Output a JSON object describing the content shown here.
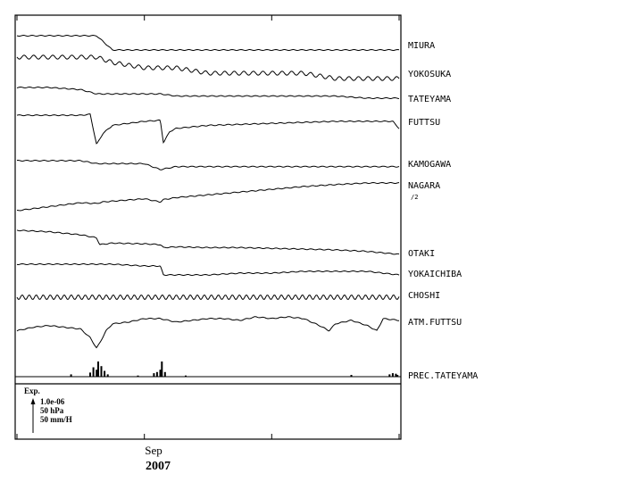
{
  "chart_data": {
    "type": "line",
    "x_axis": {
      "tick_month": "Sep",
      "tick_year": "2007",
      "tick_positions_days": [
        0,
        4,
        8,
        12
      ]
    },
    "scale_legend": {
      "title": "Exp.",
      "lines": [
        "1.0e-06",
        "50 hPa",
        "50 mm/H"
      ]
    },
    "series": [
      {
        "name": "MIURA",
        "note": "",
        "kind": "line",
        "x": [
          0,
          1,
          2,
          2.5,
          3,
          4,
          5,
          6,
          7,
          8,
          9,
          10,
          11,
          12
        ],
        "y": [
          52,
          52,
          52,
          52,
          50,
          50,
          50,
          50,
          50,
          50,
          50,
          50,
          50,
          50
        ]
      },
      {
        "name": "YOKOSUKA",
        "note": "",
        "kind": "line",
        "x": [
          0,
          1,
          2,
          2.5,
          3,
          4,
          5,
          6,
          7,
          8,
          9,
          10,
          11,
          12
        ],
        "y": [
          71,
          71,
          71,
          71,
          70,
          69,
          69,
          68,
          68,
          68,
          68,
          67,
          67,
          67
        ]
      },
      {
        "name": "TATEYAMA",
        "note": "",
        "kind": "line",
        "x": [
          0,
          1,
          2,
          2.5,
          3,
          4,
          4.5,
          5,
          6,
          7,
          8,
          9,
          10,
          11,
          12
        ],
        "y": [
          100,
          100,
          99,
          97,
          97,
          97,
          97,
          96,
          96,
          96,
          96,
          96,
          96,
          95,
          95
        ]
      },
      {
        "name": "FUTTSU",
        "note": "",
        "kind": "line",
        "x": [
          0,
          1,
          2,
          2.3,
          2.5,
          2.7,
          3,
          4,
          4.5,
          4.6,
          4.8,
          5,
          6,
          7,
          8,
          9,
          10,
          11,
          11.8,
          12
        ],
        "y": [
          130,
          130,
          130,
          131,
          101,
          112,
          120,
          124,
          125,
          103,
          114,
          117,
          120,
          121,
          122,
          123,
          124,
          124,
          124,
          117
        ]
      },
      {
        "name": "KAMOGAWA",
        "note": "",
        "kind": "line",
        "x": [
          0,
          1,
          2,
          2.5,
          3,
          4,
          4.5,
          5,
          6,
          7,
          8,
          9,
          10,
          11,
          12
        ],
        "y": [
          128,
          128,
          128,
          127,
          127,
          127,
          125,
          126,
          126,
          126,
          126,
          126,
          126,
          126,
          126
        ]
      },
      {
        "name": "NAGARA",
        "note": "/2",
        "kind": "line",
        "x": [
          0,
          1,
          2,
          2.5,
          2.7,
          3,
          4,
          4.5,
          4.6,
          5,
          6,
          7,
          8,
          9,
          10,
          11,
          12
        ],
        "y": [
          100,
          110,
          120,
          118,
          122,
          124,
          130,
          122,
          128,
          133,
          140,
          147,
          154,
          161,
          166,
          170,
          170
        ]
      },
      {
        "name": "OTAKI",
        "note": "",
        "kind": "line",
        "x": [
          0,
          1,
          2,
          2.5,
          2.6,
          3,
          4,
          4.5,
          4.6,
          5,
          6,
          7,
          8,
          9,
          10,
          11,
          12
        ],
        "y": [
          138,
          136,
          132,
          128,
          119,
          121,
          120,
          119,
          115,
          116,
          115,
          115,
          114,
          113,
          112,
          110,
          106
        ]
      },
      {
        "name": "YOKAICHIBA",
        "note": "",
        "kind": "line",
        "x": [
          0,
          1,
          2,
          3,
          4,
          4.5,
          4.6,
          5,
          6,
          7,
          8,
          9,
          10,
          11,
          12
        ],
        "y": [
          144,
          144,
          144,
          144,
          143,
          143,
          138,
          138,
          138,
          139,
          139,
          140,
          140,
          140,
          138
        ]
      },
      {
        "name": "CHOSHI",
        "note": "",
        "kind": "line",
        "x": [
          0,
          1,
          2,
          3,
          4,
          5,
          6,
          7,
          8,
          9,
          10,
          11,
          12
        ],
        "y": [
          100,
          100,
          100,
          100,
          100,
          100,
          100,
          100,
          100,
          100,
          100,
          100,
          100
        ]
      },
      {
        "name": "ATM.FUTTSU",
        "note": "",
        "kind": "line",
        "x": [
          0,
          0.5,
          1,
          1.5,
          2,
          2.3,
          2.5,
          2.6,
          2.8,
          3,
          3.5,
          4,
          4.5,
          5,
          5.5,
          6,
          6.5,
          7,
          7.5,
          8,
          8.5,
          9,
          9.5,
          9.8,
          10,
          10.5,
          11,
          11.3,
          11.5,
          12
        ],
        "y": [
          1006,
          1008,
          1009,
          1008,
          1007,
          1002,
          996,
          999,
          1006,
          1010,
          1011,
          1013,
          1013,
          1011,
          1012,
          1013,
          1013,
          1012,
          1014,
          1013,
          1014,
          1013,
          1009,
          1006,
          1010,
          1012,
          1009,
          1006,
          1013,
          1012
        ]
      },
      {
        "name": "PREC.TATEYAMA",
        "note": "",
        "kind": "bars",
        "x": [
          1.7,
          2.3,
          2.4,
          2.5,
          2.55,
          2.65,
          2.75,
          2.85,
          3.8,
          4.3,
          4.4,
          4.5,
          4.55,
          4.65,
          5.3,
          10.5,
          11.7,
          11.8,
          11.9,
          11.95
        ],
        "y": [
          4,
          7,
          16,
          12,
          26,
          18,
          10,
          4,
          2,
          6,
          8,
          12,
          26,
          8,
          2,
          3,
          4,
          6,
          5,
          3
        ]
      }
    ]
  }
}
